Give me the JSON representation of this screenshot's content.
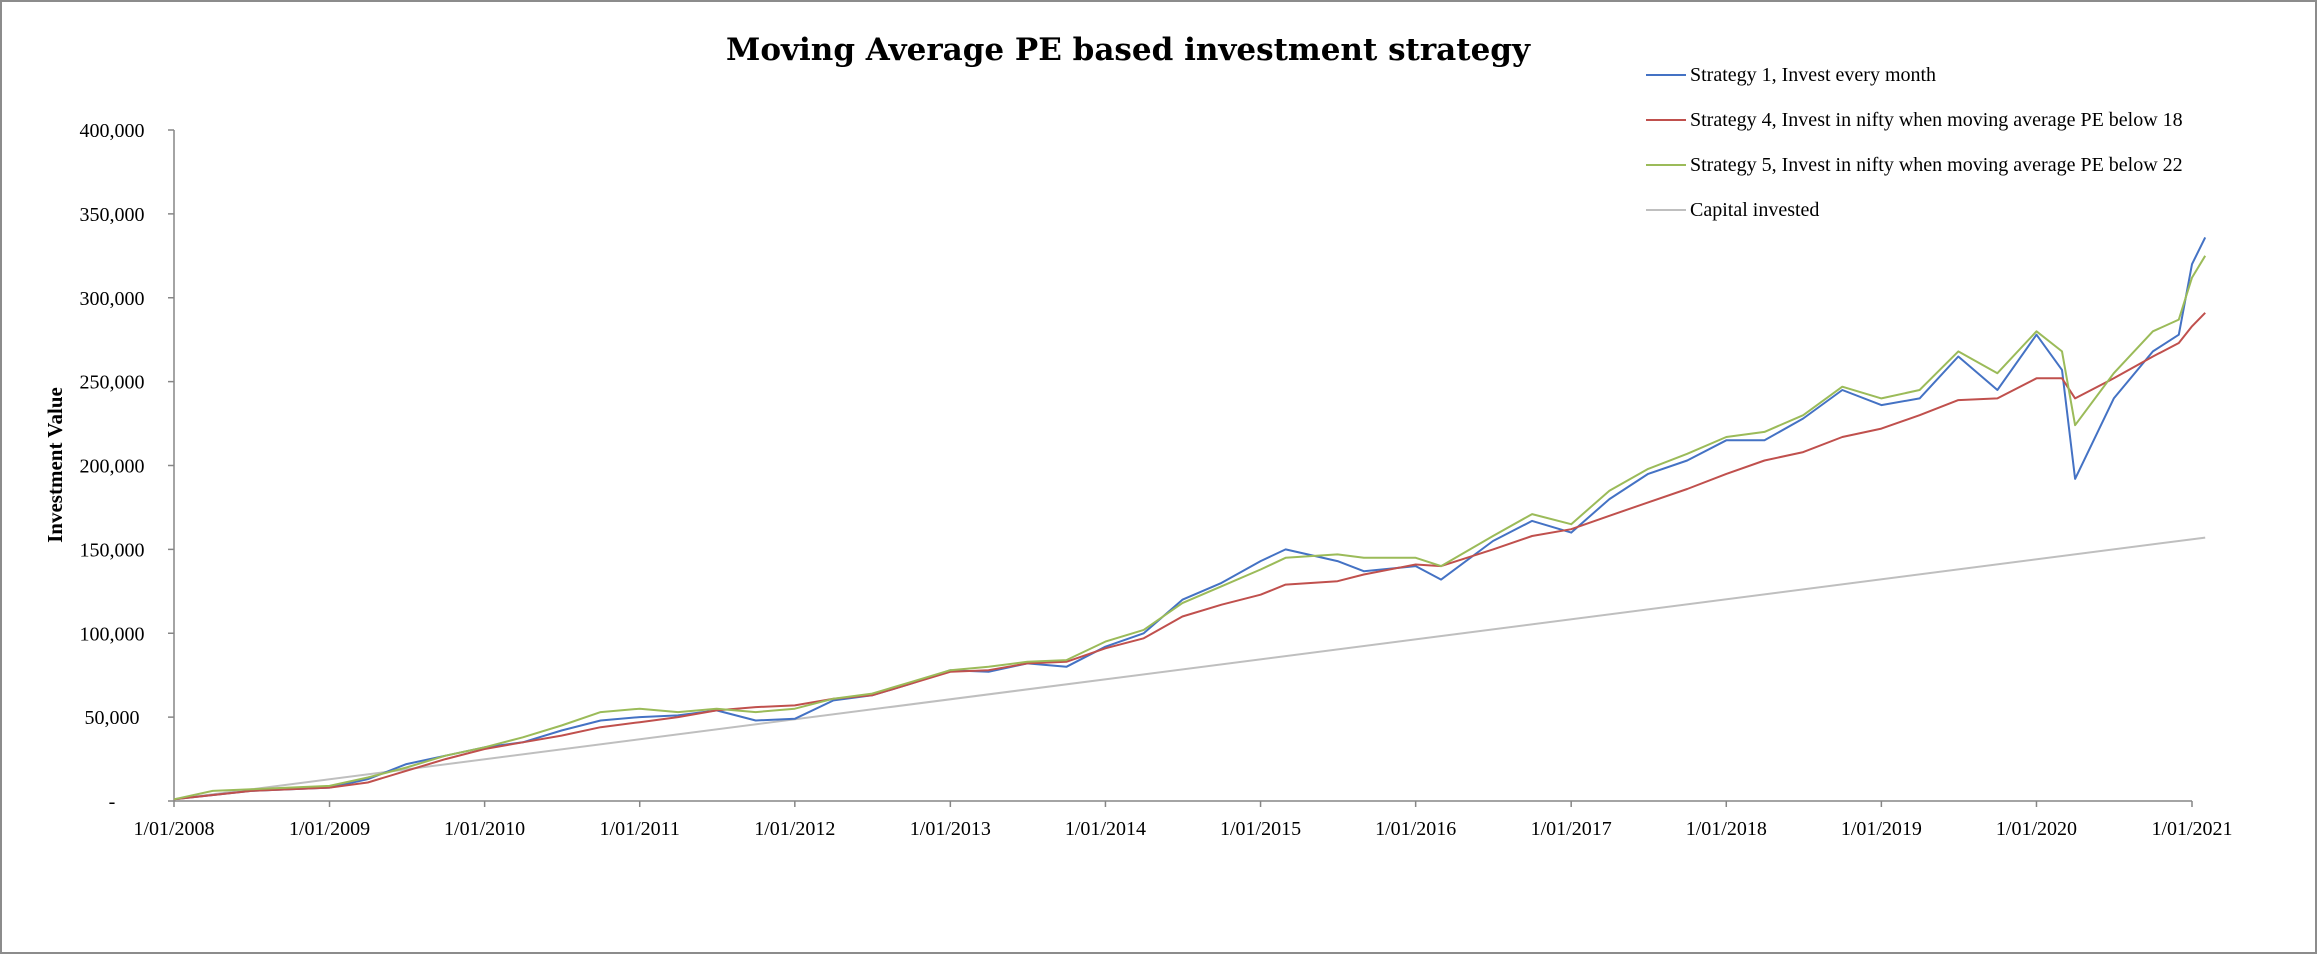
{
  "chart_data": {
    "type": "line",
    "title": "Moving Average PE based investment strategy",
    "xlabel": "",
    "ylabel": "Investment Value",
    "ylim": [
      0,
      400000
    ],
    "y_ticks": [
      0,
      50000,
      100000,
      150000,
      200000,
      250000,
      300000,
      350000,
      400000
    ],
    "y_tick_labels": [
      "-",
      "50,000",
      "100,000",
      "150,000",
      "200,000",
      "250,000",
      "300,000",
      "350,000",
      "400,000"
    ],
    "x_tick_labels": [
      "1/01/2008",
      "1/01/2009",
      "1/01/2010",
      "1/01/2011",
      "1/01/2012",
      "1/01/2013",
      "1/01/2014",
      "1/01/2015",
      "1/01/2016",
      "1/01/2017",
      "1/01/2018",
      "1/01/2019",
      "1/01/2020",
      "1/01/2021"
    ],
    "x_range": [
      "1/01/2008",
      "1/01/2021"
    ],
    "grid": false,
    "legend_position": "top-right",
    "series": [
      {
        "name": "Strategy 1, Invest every month",
        "color": "#4472C4",
        "points": [
          [
            "1/01/2008",
            1000
          ],
          [
            "1/07/2008",
            6000
          ],
          [
            "1/01/2009",
            8000
          ],
          [
            "1/04/2009",
            13000
          ],
          [
            "1/07/2009",
            22000
          ],
          [
            "1/10/2009",
            27000
          ],
          [
            "1/01/2010",
            32000
          ],
          [
            "1/04/2010",
            35000
          ],
          [
            "1/07/2010",
            42000
          ],
          [
            "1/10/2010",
            48000
          ],
          [
            "1/01/2011",
            50000
          ],
          [
            "1/04/2011",
            51000
          ],
          [
            "1/07/2011",
            54000
          ],
          [
            "1/10/2011",
            48000
          ],
          [
            "1/01/2012",
            49000
          ],
          [
            "1/04/2012",
            60000
          ],
          [
            "1/07/2012",
            63000
          ],
          [
            "1/10/2012",
            70000
          ],
          [
            "1/01/2013",
            78000
          ],
          [
            "1/04/2013",
            77000
          ],
          [
            "1/07/2013",
            82000
          ],
          [
            "1/10/2013",
            80000
          ],
          [
            "1/01/2014",
            92000
          ],
          [
            "1/04/2014",
            100000
          ],
          [
            "1/07/2014",
            120000
          ],
          [
            "1/10/2014",
            130000
          ],
          [
            "1/01/2015",
            143000
          ],
          [
            "1/03/2015",
            150000
          ],
          [
            "1/07/2015",
            143000
          ],
          [
            "1/09/2015",
            137000
          ],
          [
            "1/01/2016",
            140000
          ],
          [
            "1/03/2016",
            132000
          ],
          [
            "1/07/2016",
            155000
          ],
          [
            "1/10/2016",
            167000
          ],
          [
            "1/01/2017",
            160000
          ],
          [
            "1/04/2017",
            180000
          ],
          [
            "1/07/2017",
            195000
          ],
          [
            "1/10/2017",
            203000
          ],
          [
            "1/01/2018",
            215000
          ],
          [
            "1/04/2018",
            215000
          ],
          [
            "1/07/2018",
            228000
          ],
          [
            "1/10/2018",
            245000
          ],
          [
            "1/01/2019",
            236000
          ],
          [
            "1/04/2019",
            240000
          ],
          [
            "1/07/2019",
            265000
          ],
          [
            "1/10/2019",
            245000
          ],
          [
            "1/01/2020",
            278000
          ],
          [
            "1/03/2020",
            257000
          ],
          [
            "1/04/2020",
            192000
          ],
          [
            "1/07/2020",
            240000
          ],
          [
            "1/10/2020",
            268000
          ],
          [
            "1/12/2020",
            278000
          ],
          [
            "1/01/2021",
            320000
          ],
          [
            "1/02/2021",
            336000
          ]
        ]
      },
      {
        "name": "Strategy 4, Invest in nifty when moving average PE below 18",
        "color": "#C0504D",
        "points": [
          [
            "1/01/2008",
            1000
          ],
          [
            "1/07/2008",
            6000
          ],
          [
            "1/01/2009",
            8000
          ],
          [
            "1/04/2009",
            11000
          ],
          [
            "1/07/2009",
            18000
          ],
          [
            "1/10/2009",
            25000
          ],
          [
            "1/01/2010",
            31000
          ],
          [
            "1/04/2010",
            35000
          ],
          [
            "1/07/2010",
            39000
          ],
          [
            "1/10/2010",
            44000
          ],
          [
            "1/01/2011",
            47000
          ],
          [
            "1/04/2011",
            50000
          ],
          [
            "1/07/2011",
            54000
          ],
          [
            "1/10/2011",
            56000
          ],
          [
            "1/01/2012",
            57000
          ],
          [
            "1/04/2012",
            61000
          ],
          [
            "1/07/2012",
            63000
          ],
          [
            "1/10/2012",
            70000
          ],
          [
            "1/01/2013",
            77000
          ],
          [
            "1/04/2013",
            78000
          ],
          [
            "1/07/2013",
            82000
          ],
          [
            "1/10/2013",
            83000
          ],
          [
            "1/01/2014",
            91000
          ],
          [
            "1/04/2014",
            97000
          ],
          [
            "1/07/2014",
            110000
          ],
          [
            "1/10/2014",
            117000
          ],
          [
            "1/01/2015",
            123000
          ],
          [
            "1/03/2015",
            129000
          ],
          [
            "1/07/2015",
            131000
          ],
          [
            "1/09/2015",
            135000
          ],
          [
            "1/01/2016",
            141000
          ],
          [
            "1/03/2016",
            140000
          ],
          [
            "1/07/2016",
            150000
          ],
          [
            "1/10/2016",
            158000
          ],
          [
            "1/01/2017",
            162000
          ],
          [
            "1/04/2017",
            170000
          ],
          [
            "1/07/2017",
            178000
          ],
          [
            "1/10/2017",
            186000
          ],
          [
            "1/01/2018",
            195000
          ],
          [
            "1/04/2018",
            203000
          ],
          [
            "1/07/2018",
            208000
          ],
          [
            "1/10/2018",
            217000
          ],
          [
            "1/01/2019",
            222000
          ],
          [
            "1/04/2019",
            230000
          ],
          [
            "1/07/2019",
            239000
          ],
          [
            "1/10/2019",
            240000
          ],
          [
            "1/01/2020",
            252000
          ],
          [
            "1/03/2020",
            252000
          ],
          [
            "1/04/2020",
            240000
          ],
          [
            "1/07/2020",
            252000
          ],
          [
            "1/10/2020",
            265000
          ],
          [
            "1/12/2020",
            273000
          ],
          [
            "1/01/2021",
            283000
          ],
          [
            "1/02/2021",
            291000
          ]
        ]
      },
      {
        "name": "Strategy 5, Invest in nifty when moving average PE below 22",
        "color": "#9BBB59",
        "points": [
          [
            "1/01/2008",
            1000
          ],
          [
            "1/04/2008",
            6000
          ],
          [
            "1/07/2008",
            7000
          ],
          [
            "1/01/2009",
            9000
          ],
          [
            "1/04/2009",
            14000
          ],
          [
            "1/07/2009",
            20000
          ],
          [
            "1/10/2009",
            27000
          ],
          [
            "1/01/2010",
            32000
          ],
          [
            "1/04/2010",
            38000
          ],
          [
            "1/07/2010",
            45000
          ],
          [
            "1/10/2010",
            53000
          ],
          [
            "1/01/2011",
            55000
          ],
          [
            "1/04/2011",
            53000
          ],
          [
            "1/07/2011",
            55000
          ],
          [
            "1/10/2011",
            53000
          ],
          [
            "1/01/2012",
            55000
          ],
          [
            "1/04/2012",
            61000
          ],
          [
            "1/07/2012",
            64000
          ],
          [
            "1/10/2012",
            71000
          ],
          [
            "1/01/2013",
            78000
          ],
          [
            "1/04/2013",
            80000
          ],
          [
            "1/07/2013",
            83000
          ],
          [
            "1/10/2013",
            84000
          ],
          [
            "1/01/2014",
            95000
          ],
          [
            "1/04/2014",
            102000
          ],
          [
            "1/07/2014",
            118000
          ],
          [
            "1/10/2014",
            128000
          ],
          [
            "1/01/2015",
            138000
          ],
          [
            "1/03/2015",
            145000
          ],
          [
            "1/07/2015",
            147000
          ],
          [
            "1/09/2015",
            145000
          ],
          [
            "1/01/2016",
            145000
          ],
          [
            "1/03/2016",
            140000
          ],
          [
            "1/07/2016",
            158000
          ],
          [
            "1/10/2016",
            171000
          ],
          [
            "1/01/2017",
            165000
          ],
          [
            "1/04/2017",
            185000
          ],
          [
            "1/07/2017",
            198000
          ],
          [
            "1/10/2017",
            207000
          ],
          [
            "1/01/2018",
            217000
          ],
          [
            "1/04/2018",
            220000
          ],
          [
            "1/07/2018",
            230000
          ],
          [
            "1/10/2018",
            247000
          ],
          [
            "1/01/2019",
            240000
          ],
          [
            "1/04/2019",
            245000
          ],
          [
            "1/07/2019",
            268000
          ],
          [
            "1/10/2019",
            255000
          ],
          [
            "1/01/2020",
            280000
          ],
          [
            "1/03/2020",
            268000
          ],
          [
            "1/04/2020",
            224000
          ],
          [
            "1/07/2020",
            255000
          ],
          [
            "1/10/2020",
            280000
          ],
          [
            "1/12/2020",
            287000
          ],
          [
            "1/01/2021",
            312000
          ],
          [
            "1/02/2021",
            325000
          ]
        ]
      },
      {
        "name": "Capital invested",
        "color": "#BFBFBF",
        "points": [
          [
            "1/01/2008",
            1000
          ],
          [
            "1/02/2021",
            157000
          ]
        ]
      }
    ]
  }
}
